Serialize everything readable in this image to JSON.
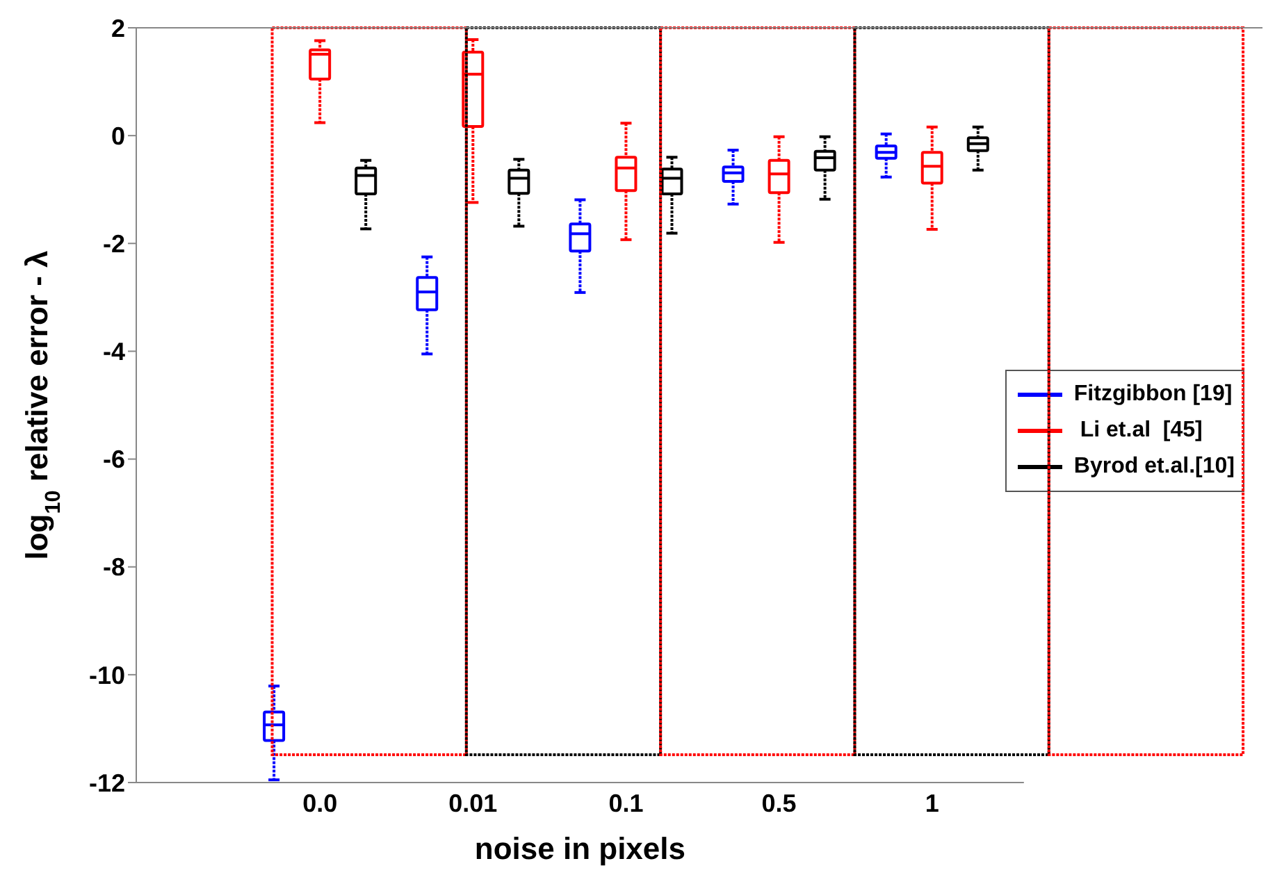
{
  "chart_data": {
    "type": "box",
    "xlabel": "noise in pixels",
    "ylabel": "log$_{10}$ relative error - λ",
    "categories": [
      "0.0",
      "0.01",
      "0.1",
      "0.5",
      "1"
    ],
    "ylim": [
      -12,
      2
    ],
    "yticks": [
      -12,
      -10,
      -8,
      -6,
      -4,
      -2,
      0,
      2
    ],
    "grid": false,
    "legend": "right",
    "series": [
      {
        "name": "Fitzgibbon [19]",
        "color": "#0000ff",
        "boxes": [
          {
            "low": -11.95,
            "q1": -11.22,
            "median": -10.93,
            "q3": -10.69,
            "high": -10.21
          },
          {
            "low": -4.05,
            "q1": -3.23,
            "median": -2.9,
            "q3": -2.63,
            "high": -2.25
          },
          {
            "low": -2.91,
            "q1": -2.14,
            "median": -1.82,
            "q3": -1.64,
            "high": -1.19
          },
          {
            "low": -1.27,
            "q1": -0.85,
            "median": -0.69,
            "q3": -0.58,
            "high": -0.27
          },
          {
            "low": -0.77,
            "q1": -0.42,
            "median": -0.31,
            "q3": -0.19,
            "high": 0.03
          }
        ]
      },
      {
        "name": " Li et.al  [45]",
        "color": "#ff0000",
        "boxes": [
          {
            "low": 0.24,
            "q1": 1.05,
            "median": 1.51,
            "q3": 1.59,
            "high": 1.76
          },
          {
            "low": -1.24,
            "q1": 0.17,
            "median": 1.14,
            "q3": 1.55,
            "high": 1.78
          },
          {
            "low": -1.93,
            "q1": -1.02,
            "median": -0.6,
            "q3": -0.4,
            "high": 0.23
          },
          {
            "low": -1.98,
            "q1": -1.06,
            "median": -0.71,
            "q3": -0.46,
            "high": -0.02
          },
          {
            "low": -1.74,
            "q1": -0.88,
            "median": -0.57,
            "q3": -0.31,
            "high": 0.16
          }
        ]
      },
      {
        "name": "Byrod et.al.[10]",
        "color": "#000000",
        "boxes": [
          {
            "low": -1.73,
            "q1": -1.08,
            "median": -0.74,
            "q3": -0.6,
            "high": -0.46
          },
          {
            "low": -1.68,
            "q1": -1.07,
            "median": -0.79,
            "q3": -0.64,
            "high": -0.44
          },
          {
            "low": -1.81,
            "q1": -1.08,
            "median": -0.79,
            "q3": -0.62,
            "high": -0.4
          },
          {
            "low": -1.18,
            "q1": -0.64,
            "median": -0.41,
            "q3": -0.29,
            "high": -0.02
          },
          {
            "low": -0.64,
            "q1": -0.28,
            "median": -0.15,
            "q3": -0.04,
            "high": 0.16
          }
        ]
      }
    ]
  }
}
